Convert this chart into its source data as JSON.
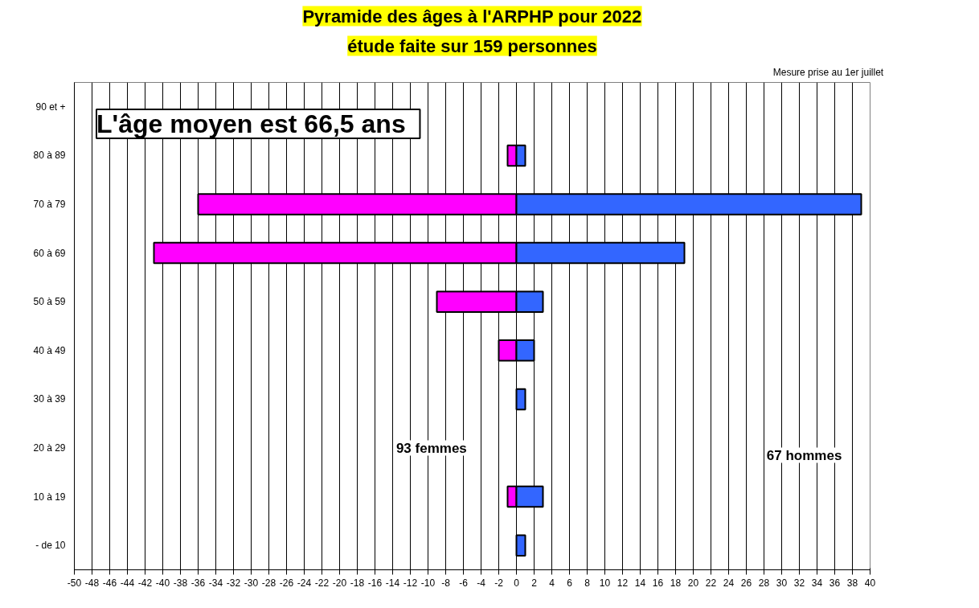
{
  "chart_data": {
    "type": "bar",
    "orientation": "horizontal",
    "stacked": true,
    "title": "Pyramide des âges à l'ARPHP pour 2022",
    "subtitle": "étude faite sur 159 personnes",
    "categories": [
      "90 et +",
      "80 à 89",
      "70 à 79",
      "60 à 69",
      "50 à 59",
      "40 à 49",
      "30 à 39",
      "20 à 29",
      "10 à 19",
      "- de 10"
    ],
    "series": [
      {
        "color": "#ff00ff",
        "values": [
          null,
          -1,
          -36,
          -41,
          -9,
          -2,
          null,
          null,
          -1,
          null
        ]
      },
      {
        "color": "#3366ff",
        "values": [
          null,
          1,
          39,
          19,
          3,
          2,
          1,
          null,
          3,
          1
        ]
      }
    ],
    "xlim": [
      -50,
      40
    ],
    "xticks": [
      -50,
      -48,
      -46,
      -44,
      -42,
      -40,
      -38,
      -36,
      -34,
      -32,
      -30,
      -28,
      -26,
      -24,
      -22,
      -20,
      -18,
      -16,
      -14,
      -12,
      -10,
      -8,
      -6,
      -4,
      -2,
      0,
      2,
      4,
      6,
      8,
      10,
      12,
      14,
      16,
      18,
      20,
      22,
      24,
      26,
      28,
      30,
      32,
      34,
      36,
      38,
      40
    ],
    "grid": "x",
    "annotations": [
      "L'âge moyen est 66,5 ans",
      "93 femmes",
      "67 hommes",
      "Mesure prise au  1er juillet"
    ]
  }
}
